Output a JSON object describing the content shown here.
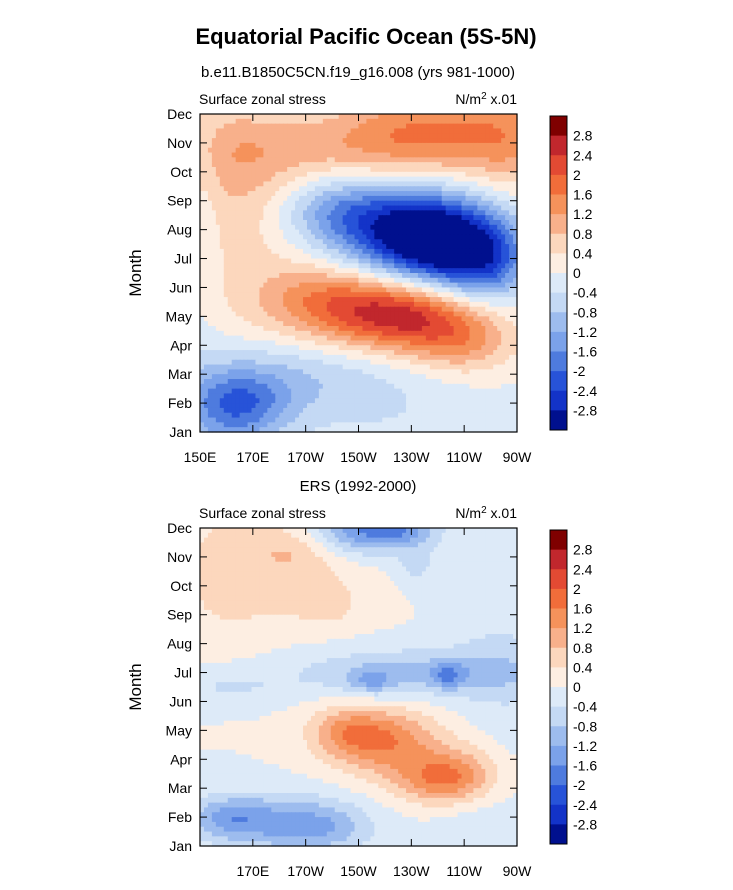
{
  "figure": {
    "title": "Equatorial Pacific Ocean (5S-5N)"
  },
  "colorbar": {
    "levels": [
      "2.8",
      "2.4",
      "2",
      "1.6",
      "1.2",
      "0.8",
      "0.4",
      "0",
      "-0.4",
      "-0.8",
      "-1.2",
      "-1.6",
      "-2",
      "-2.4",
      "-2.8"
    ],
    "colors": [
      "#7f0000",
      "#c1272d",
      "#e34a33",
      "#f16d3a",
      "#f5925b",
      "#f8b08b",
      "#fcd7bd",
      "#fdeee2",
      "#ddeaf8",
      "#c4d9f4",
      "#9dbcee",
      "#7ba2ea",
      "#4e7bde",
      "#2753d8",
      "#1333c8",
      "#00108e"
    ]
  },
  "chart_data": [
    {
      "type": "heatmap",
      "subtitle": "b.e11.B1850C5CN.f19_g16.008 (yrs 981-1000)",
      "left_label": "Surface zonal stress",
      "units_main": "N/m",
      "units_sup": "2",
      "units_tail": " x.01",
      "ylabel": "Month",
      "months": [
        "Jan",
        "Feb",
        "Mar",
        "Apr",
        "May",
        "Jun",
        "Jul",
        "Aug",
        "Sep",
        "Oct",
        "Nov",
        "Dec"
      ],
      "x_ticks": [
        {
          "lon": 150,
          "label": "150E"
        },
        {
          "lon": 170,
          "label": "170E"
        },
        {
          "lon": 190,
          "label": "170W"
        },
        {
          "lon": 210,
          "label": "150W"
        },
        {
          "lon": 230,
          "label": "130W"
        },
        {
          "lon": 250,
          "label": "110W"
        },
        {
          "lon": 270,
          "label": "90W"
        }
      ],
      "xlim": [
        150,
        270
      ],
      "ylim": [
        0,
        11
      ],
      "blobs": [
        {
          "lon": 160,
          "month": 10.0,
          "dx": 18,
          "dy": 1.6,
          "amp": 0.6
        },
        {
          "lon": 205,
          "month": 10.4,
          "dx": 35,
          "dy": 1.2,
          "amp": 0.9
        },
        {
          "lon": 235,
          "month": 10.3,
          "dx": 22,
          "dy": 1.0,
          "amp": 1.1
        },
        {
          "lon": 268,
          "month": 10.2,
          "dx": 14,
          "dy": 1.3,
          "amp": 1.0
        },
        {
          "lon": 180,
          "month": 6.0,
          "dx": 22,
          "dy": 3.5,
          "amp": 0.35
        },
        {
          "lon": 165,
          "month": 7.5,
          "dx": 12,
          "dy": 2.2,
          "amp": 0.3
        },
        {
          "lon": 240,
          "month": 6.5,
          "dx": 18,
          "dy": 1.1,
          "amp": -3.0
        },
        {
          "lon": 220,
          "month": 7.2,
          "dx": 22,
          "dy": 1.0,
          "amp": -1.7
        },
        {
          "lon": 200,
          "month": 7.8,
          "dx": 14,
          "dy": 0.8,
          "amp": -0.8
        },
        {
          "lon": 258,
          "month": 5.8,
          "dx": 12,
          "dy": 1.0,
          "amp": -1.4
        },
        {
          "lon": 228,
          "month": 4.0,
          "dx": 20,
          "dy": 0.9,
          "amp": 2.0
        },
        {
          "lon": 210,
          "month": 4.3,
          "dx": 22,
          "dy": 0.9,
          "amp": 1.0
        },
        {
          "lon": 250,
          "month": 3.1,
          "dx": 14,
          "dy": 0.8,
          "amp": 1.0
        },
        {
          "lon": 193,
          "month": 4.7,
          "dx": 14,
          "dy": 0.8,
          "amp": 0.5
        },
        {
          "lon": 165,
          "month": 1.0,
          "dx": 14,
          "dy": 0.8,
          "amp": -1.3
        },
        {
          "lon": 185,
          "month": 2.0,
          "dx": 30,
          "dy": 1.0,
          "amp": -0.8
        },
        {
          "lon": 160,
          "month": 0.3,
          "dx": 14,
          "dy": 1.2,
          "amp": -0.7
        },
        {
          "lon": 220,
          "month": 0.4,
          "dx": 35,
          "dy": 1.3,
          "amp": -0.3
        },
        {
          "lon": 185,
          "month": 11.0,
          "dx": 30,
          "dy": 0.7,
          "amp": -0.5
        },
        {
          "lon": 152,
          "month": 7.5,
          "dx": 4,
          "dy": 3.0,
          "amp": -0.25
        }
      ]
    },
    {
      "type": "heatmap",
      "subtitle": "ERS (1992-2000)",
      "left_label": "Surface zonal stress",
      "units_main": "N/m",
      "units_sup": "2",
      "units_tail": " x.01",
      "ylabel": "Month",
      "months": [
        "Jan",
        "Feb",
        "Mar",
        "Apr",
        "May",
        "Jun",
        "Jul",
        "Aug",
        "Sep",
        "Oct",
        "Nov",
        "Dec"
      ],
      "x_ticks": [
        {
          "lon": 170,
          "label": "170E"
        },
        {
          "lon": 190,
          "label": "170W"
        },
        {
          "lon": 210,
          "label": "150W"
        },
        {
          "lon": 230,
          "label": "130W"
        },
        {
          "lon": 250,
          "label": "110W"
        },
        {
          "lon": 270,
          "label": "90W"
        }
      ],
      "xlim": [
        150,
        270
      ],
      "ylim": [
        0,
        11
      ],
      "blobs": [
        {
          "lon": 175,
          "month": 10.0,
          "dx": 25,
          "dy": 1.8,
          "amp": 0.45
        },
        {
          "lon": 185,
          "month": 10.2,
          "dx": 10,
          "dy": 0.5,
          "amp": 0.4
        },
        {
          "lon": 192,
          "month": 8.8,
          "dx": 10,
          "dy": 0.6,
          "amp": 0.35
        },
        {
          "lon": 200,
          "month": 8.2,
          "dx": 8,
          "dy": 0.5,
          "amp": 0.3
        },
        {
          "lon": 160,
          "month": 9.0,
          "dx": 12,
          "dy": 1.5,
          "amp": 0.3
        },
        {
          "lon": 260,
          "month": 10.0,
          "dx": 12,
          "dy": 2.5,
          "amp": -0.3
        },
        {
          "lon": 213,
          "month": 11.0,
          "dx": 14,
          "dy": 0.6,
          "amp": -1.8
        },
        {
          "lon": 228,
          "month": 10.9,
          "dx": 8,
          "dy": 0.4,
          "amp": -0.6
        },
        {
          "lon": 232,
          "month": 9.7,
          "dx": 5,
          "dy": 0.5,
          "amp": -0.5
        },
        {
          "lon": 232,
          "month": 6.0,
          "dx": 35,
          "dy": 0.6,
          "amp": -0.9
        },
        {
          "lon": 215,
          "month": 5.7,
          "dx": 6,
          "dy": 0.3,
          "amp": -0.8
        },
        {
          "lon": 244,
          "month": 5.9,
          "dx": 5,
          "dy": 0.3,
          "amp": -0.9
        },
        {
          "lon": 268,
          "month": 5.8,
          "dx": 14,
          "dy": 1.8,
          "amp": -0.3
        },
        {
          "lon": 160,
          "month": 5.5,
          "dx": 15,
          "dy": 0.4,
          "amp": -0.4
        },
        {
          "lon": 220,
          "month": 3.6,
          "dx": 15,
          "dy": 0.8,
          "amp": 1.5
        },
        {
          "lon": 240,
          "month": 2.3,
          "dx": 12,
          "dy": 0.6,
          "amp": 1.3
        },
        {
          "lon": 205,
          "month": 4.0,
          "dx": 10,
          "dy": 0.6,
          "amp": 0.8
        },
        {
          "lon": 250,
          "month": 2.6,
          "dx": 10,
          "dy": 0.7,
          "amp": 0.6
        },
        {
          "lon": 180,
          "month": 0.8,
          "dx": 18,
          "dy": 0.7,
          "amp": -1.2
        },
        {
          "lon": 160,
          "month": 1.0,
          "dx": 10,
          "dy": 0.5,
          "amp": -0.9
        },
        {
          "lon": 200,
          "month": 0.6,
          "dx": 12,
          "dy": 0.6,
          "amp": -0.6
        },
        {
          "lon": 258,
          "month": 0.6,
          "dx": 14,
          "dy": 0.8,
          "amp": -0.3
        }
      ]
    }
  ]
}
